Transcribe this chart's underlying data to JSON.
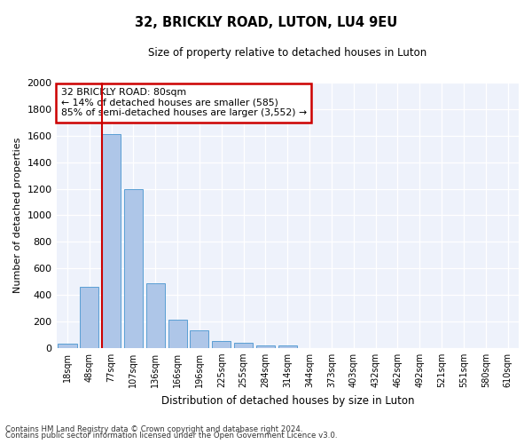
{
  "title": "32, BRICKLY ROAD, LUTON, LU4 9EU",
  "subtitle": "Size of property relative to detached houses in Luton",
  "xlabel": "Distribution of detached houses by size in Luton",
  "ylabel": "Number of detached properties",
  "footnote1": "Contains HM Land Registry data © Crown copyright and database right 2024.",
  "footnote2": "Contains public sector information licensed under the Open Government Licence v3.0.",
  "bar_labels": [
    "18sqm",
    "48sqm",
    "77sqm",
    "107sqm",
    "136sqm",
    "166sqm",
    "196sqm",
    "225sqm",
    "255sqm",
    "284sqm",
    "314sqm",
    "344sqm",
    "373sqm",
    "403sqm",
    "432sqm",
    "462sqm",
    "492sqm",
    "521sqm",
    "551sqm",
    "580sqm",
    "610sqm"
  ],
  "bar_values": [
    35,
    460,
    1610,
    1195,
    490,
    210,
    130,
    50,
    40,
    22,
    18,
    0,
    0,
    0,
    0,
    0,
    0,
    0,
    0,
    0,
    0
  ],
  "bar_color": "#aec6e8",
  "bar_edgecolor": "#5a9fd4",
  "vline_bar_index": 2,
  "property_label": "32 BRICKLY ROAD: 80sqm",
  "annotation_line1": "← 14% of detached houses are smaller (585)",
  "annotation_line2": "85% of semi-detached houses are larger (3,552) →",
  "vline_color": "#cc0000",
  "annotation_box_color": "#cc0000",
  "ylim": [
    0,
    2000
  ],
  "ytick_step": 200,
  "background_color": "#eef2fb"
}
